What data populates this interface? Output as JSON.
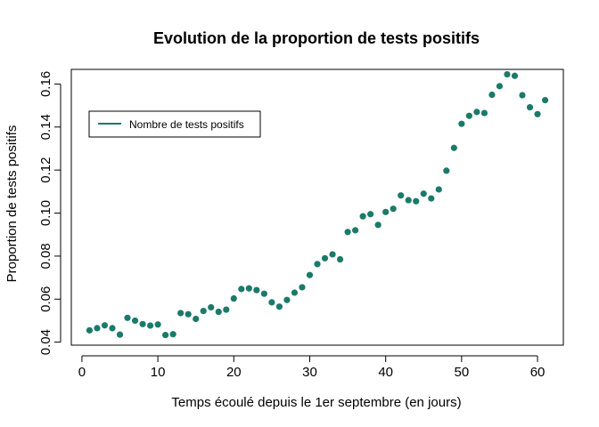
{
  "chart_data": {
    "type": "scatter",
    "title": "Evolution de la proportion de tests positifs",
    "xlabel": "Temps écoulé depuis le 1er septembre (en jours)",
    "ylabel": "Proportion de tests positifs",
    "xlim": [
      -1.4,
      63.4
    ],
    "ylim": [
      0.0386,
      0.1668
    ],
    "x_ticks": [
      0,
      10,
      20,
      30,
      40,
      50,
      60
    ],
    "y_ticks": [
      0.04,
      0.06,
      0.08,
      0.1,
      0.12,
      0.14,
      0.16
    ],
    "x_tick_labels": [
      "0",
      "10",
      "20",
      "30",
      "40",
      "50",
      "60"
    ],
    "y_tick_labels": [
      "0.04",
      "0.06",
      "0.08",
      "0.10",
      "0.12",
      "0.14",
      "0.16"
    ],
    "grid": false,
    "legend": {
      "position": "top-left",
      "entries": [
        "Nombre de tests positifs"
      ]
    },
    "series": [
      {
        "name": "Nombre de tests positifs",
        "color": "#1b7a6a",
        "x": [
          1,
          2,
          3,
          4,
          5,
          6,
          7,
          8,
          9,
          10,
          11,
          12,
          13,
          14,
          15,
          16,
          17,
          18,
          19,
          20,
          21,
          22,
          23,
          24,
          25,
          26,
          27,
          28,
          29,
          30,
          31,
          32,
          33,
          34,
          35,
          36,
          37,
          38,
          39,
          40,
          41,
          42,
          43,
          44,
          45,
          46,
          47,
          48,
          49,
          50,
          51,
          52,
          53,
          54,
          55,
          56,
          57,
          58,
          59,
          60,
          61
        ],
        "y": [
          0.0455,
          0.0465,
          0.0478,
          0.0465,
          0.0435,
          0.0513,
          0.05,
          0.0484,
          0.0477,
          0.0482,
          0.0433,
          0.0437,
          0.0535,
          0.053,
          0.0508,
          0.0545,
          0.0562,
          0.0541,
          0.0551,
          0.0603,
          0.0647,
          0.065,
          0.0642,
          0.0625,
          0.0585,
          0.0565,
          0.0596,
          0.063,
          0.0655,
          0.0712,
          0.0763,
          0.079,
          0.0808,
          0.0785,
          0.0912,
          0.092,
          0.0985,
          0.0995,
          0.0945,
          0.1005,
          0.102,
          0.1082,
          0.106,
          0.1055,
          0.109,
          0.1068,
          0.111,
          0.1197,
          0.1303,
          0.1415,
          0.1452,
          0.147,
          0.1465,
          0.155,
          0.159,
          0.1645,
          0.1638,
          0.1548,
          0.1492,
          0.146,
          0.1525
        ]
      }
    ]
  }
}
